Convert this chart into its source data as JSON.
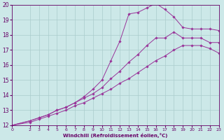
{
  "background_color": "#cce8e8",
  "grid_color": "#aacccc",
  "line_color": "#993399",
  "marker_color": "#993399",
  "xlabel": "Windchill (Refroidissement éolien,°C)",
  "xlabel_color": "#660066",
  "tick_color": "#660066",
  "xlim": [
    0,
    23
  ],
  "ylim": [
    12,
    20
  ],
  "yticks": [
    12,
    13,
    14,
    15,
    16,
    17,
    18,
    19,
    20
  ],
  "xticks": [
    0,
    2,
    3,
    4,
    5,
    6,
    7,
    8,
    9,
    10,
    11,
    12,
    13,
    14,
    15,
    16,
    17,
    18,
    19,
    20,
    21,
    22,
    23
  ],
  "curve_top_x": [
    0,
    2,
    3,
    4,
    5,
    6,
    7,
    8,
    9,
    10,
    11,
    12,
    13,
    14,
    15,
    16,
    17,
    18,
    19,
    20,
    21,
    22,
    23
  ],
  "curve_top_y": [
    12,
    12.3,
    12.5,
    12.7,
    13.0,
    13.2,
    13.5,
    13.9,
    14.4,
    15.0,
    16.3,
    17.6,
    19.4,
    19.5,
    19.8,
    20.1,
    19.7,
    19.2,
    18.5,
    18.4,
    18.4,
    18.4,
    18.3
  ],
  "curve_mid_x": [
    0,
    2,
    3,
    4,
    5,
    6,
    7,
    8,
    9,
    10,
    11,
    12,
    13,
    14,
    15,
    16,
    17,
    18,
    19,
    20,
    21,
    22,
    23
  ],
  "curve_mid_y": [
    12,
    12.3,
    12.5,
    12.7,
    13.0,
    13.2,
    13.5,
    13.8,
    14.1,
    14.5,
    15.1,
    15.6,
    16.2,
    16.7,
    17.3,
    17.8,
    17.8,
    18.2,
    17.8,
    17.8,
    17.8,
    17.5,
    17.5
  ],
  "curve_bot_x": [
    0,
    2,
    3,
    4,
    5,
    6,
    7,
    8,
    9,
    10,
    11,
    12,
    13,
    14,
    15,
    16,
    17,
    18,
    19,
    20,
    21,
    22,
    23
  ],
  "curve_bot_y": [
    12,
    12.2,
    12.4,
    12.6,
    12.8,
    13.0,
    13.3,
    13.5,
    13.8,
    14.1,
    14.4,
    14.8,
    15.1,
    15.5,
    15.9,
    16.3,
    16.6,
    17.0,
    17.3,
    17.3,
    17.3,
    17.1,
    16.8
  ]
}
